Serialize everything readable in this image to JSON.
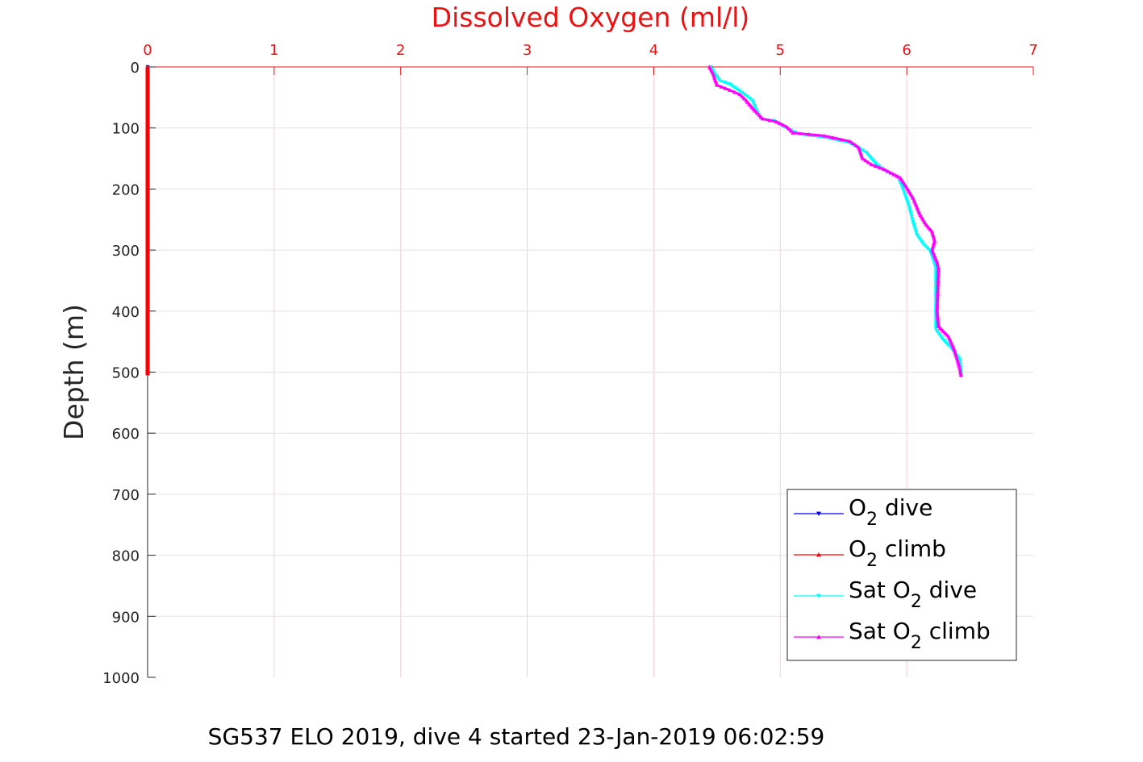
{
  "chart_data": {
    "type": "line",
    "title": "Dissolved Oxygen (ml/l)",
    "ylabel": "Depth (m)",
    "xlim": [
      0,
      7
    ],
    "ylim": [
      0,
      1000
    ],
    "y_reversed": true,
    "x_axis_location": "top",
    "xticks": [
      0,
      1,
      2,
      3,
      4,
      5,
      6,
      7
    ],
    "yticks": [
      0,
      100,
      200,
      300,
      400,
      500,
      600,
      700,
      800,
      900,
      1000
    ],
    "grid": true,
    "legend_location": "bottom-right",
    "series": [
      {
        "name": "O_2 dive",
        "color": "#0000ff",
        "marker": "triangle-down",
        "points": [
          [
            0,
            0
          ],
          [
            0,
            100
          ],
          [
            0,
            200
          ],
          [
            0,
            300
          ],
          [
            0,
            400
          ],
          [
            0,
            505
          ]
        ]
      },
      {
        "name": "O_2 climb",
        "color": "#ff0000",
        "marker": "triangle-up",
        "points": [
          [
            0,
            0
          ],
          [
            0,
            100
          ],
          [
            0,
            200
          ],
          [
            0,
            300
          ],
          [
            0,
            400
          ],
          [
            0,
            505
          ]
        ]
      },
      {
        "name": "Sat O_2 dive",
        "color": "#00ffff",
        "marker": "triangle-down",
        "points": [
          [
            4.45,
            0
          ],
          [
            4.48,
            10
          ],
          [
            4.52,
            22
          ],
          [
            4.6,
            28
          ],
          [
            4.7,
            42
          ],
          [
            4.78,
            55
          ],
          [
            4.82,
            75
          ],
          [
            4.85,
            85
          ],
          [
            4.95,
            88
          ],
          [
            5.05,
            100
          ],
          [
            5.15,
            110
          ],
          [
            5.35,
            115
          ],
          [
            5.55,
            124
          ],
          [
            5.68,
            140
          ],
          [
            5.76,
            160
          ],
          [
            5.85,
            172
          ],
          [
            5.93,
            180
          ],
          [
            5.97,
            200
          ],
          [
            6.02,
            230
          ],
          [
            6.05,
            255
          ],
          [
            6.08,
            275
          ],
          [
            6.13,
            290
          ],
          [
            6.18,
            300
          ],
          [
            6.2,
            310
          ],
          [
            6.23,
            330
          ],
          [
            6.23,
            380
          ],
          [
            6.23,
            430
          ],
          [
            6.28,
            445
          ],
          [
            6.35,
            460
          ],
          [
            6.42,
            480
          ],
          [
            6.43,
            505
          ]
        ]
      },
      {
        "name": "Sat O_2 climb",
        "color": "#ff00ff",
        "marker": "triangle-up",
        "points": [
          [
            4.44,
            0
          ],
          [
            4.47,
            12
          ],
          [
            4.5,
            30
          ],
          [
            4.6,
            38
          ],
          [
            4.68,
            45
          ],
          [
            4.73,
            55
          ],
          [
            4.8,
            72
          ],
          [
            4.86,
            85
          ],
          [
            4.97,
            90
          ],
          [
            5.05,
            98
          ],
          [
            5.1,
            108
          ],
          [
            5.35,
            113
          ],
          [
            5.55,
            122
          ],
          [
            5.62,
            132
          ],
          [
            5.65,
            150
          ],
          [
            5.72,
            160
          ],
          [
            5.82,
            168
          ],
          [
            5.95,
            182
          ],
          [
            6.0,
            198
          ],
          [
            6.05,
            215
          ],
          [
            6.1,
            240
          ],
          [
            6.15,
            258
          ],
          [
            6.2,
            270
          ],
          [
            6.22,
            285
          ],
          [
            6.2,
            300
          ],
          [
            6.24,
            320
          ],
          [
            6.25,
            330
          ],
          [
            6.24,
            400
          ],
          [
            6.25,
            425
          ],
          [
            6.33,
            442
          ],
          [
            6.37,
            460
          ],
          [
            6.4,
            480
          ],
          [
            6.42,
            495
          ],
          [
            6.43,
            508
          ]
        ]
      }
    ],
    "legend": [
      {
        "base": "O",
        "sub": "2",
        "suffix": " dive"
      },
      {
        "base": "O",
        "sub": "2",
        "suffix": " climb"
      },
      {
        "base": "Sat O",
        "sub": "2",
        "suffix": " dive"
      },
      {
        "base": "Sat O",
        "sub": "2",
        "suffix": " climb"
      }
    ]
  },
  "caption": "SG537 ELO 2019, dive 4 started 23-Jan-2019 06:02:59"
}
